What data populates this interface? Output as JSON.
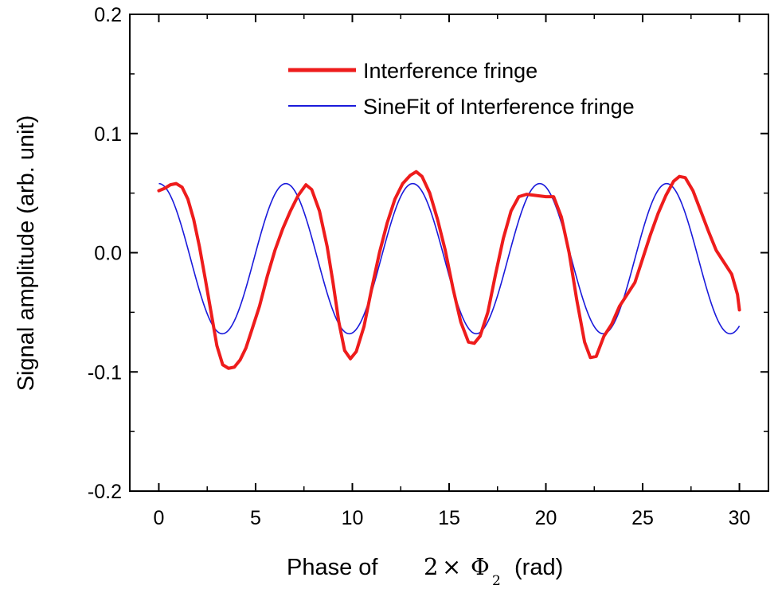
{
  "chart_data": {
    "type": "line",
    "xlabel": {
      "prefix": "Phase of",
      "math_coef": "2",
      "math_op": "×",
      "math_symbol": "Φ",
      "math_sub": "2",
      "suffix": "(rad)"
    },
    "ylabel": "Signal amplitude (arb. unit)",
    "xlim": [
      -1.5,
      31.5
    ],
    "ylim": [
      -0.2,
      0.2
    ],
    "x_ticks": [
      0,
      5,
      10,
      15,
      20,
      25,
      30
    ],
    "x_tick_labels": [
      "0",
      "5",
      "10",
      "15",
      "20",
      "25",
      "30"
    ],
    "y_ticks": [
      -0.2,
      -0.1,
      0.0,
      0.1,
      0.2
    ],
    "y_tick_labels": [
      "-0.2",
      "-0.1",
      "0.0",
      "0.1",
      "0.2"
    ],
    "grid": false,
    "legend_position": "top-right",
    "series": [
      {
        "name": "Interference fringe",
        "color": "#ee1c1c",
        "points": [
          [
            0.0,
            0.052
          ],
          [
            0.3,
            0.054
          ],
          [
            0.6,
            0.057
          ],
          [
            0.9,
            0.058
          ],
          [
            1.2,
            0.055
          ],
          [
            1.5,
            0.045
          ],
          [
            1.8,
            0.028
          ],
          [
            2.1,
            0.005
          ],
          [
            2.4,
            -0.022
          ],
          [
            2.7,
            -0.05
          ],
          [
            3.0,
            -0.078
          ],
          [
            3.3,
            -0.094
          ],
          [
            3.6,
            -0.097
          ],
          [
            3.9,
            -0.096
          ],
          [
            4.2,
            -0.09
          ],
          [
            4.5,
            -0.08
          ],
          [
            4.8,
            -0.065
          ],
          [
            5.2,
            -0.045
          ],
          [
            5.6,
            -0.02
          ],
          [
            6.0,
            0.002
          ],
          [
            6.4,
            0.02
          ],
          [
            6.8,
            0.035
          ],
          [
            7.2,
            0.048
          ],
          [
            7.6,
            0.057
          ],
          [
            7.9,
            0.053
          ],
          [
            8.3,
            0.035
          ],
          [
            8.7,
            0.005
          ],
          [
            9.0,
            -0.025
          ],
          [
            9.3,
            -0.058
          ],
          [
            9.6,
            -0.082
          ],
          [
            9.9,
            -0.089
          ],
          [
            10.2,
            -0.083
          ],
          [
            10.6,
            -0.062
          ],
          [
            11.0,
            -0.03
          ],
          [
            11.4,
            0.0
          ],
          [
            11.8,
            0.025
          ],
          [
            12.2,
            0.045
          ],
          [
            12.6,
            0.058
          ],
          [
            13.0,
            0.065
          ],
          [
            13.3,
            0.068
          ],
          [
            13.6,
            0.064
          ],
          [
            14.0,
            0.05
          ],
          [
            14.4,
            0.028
          ],
          [
            14.8,
            0.002
          ],
          [
            15.2,
            -0.03
          ],
          [
            15.6,
            -0.058
          ],
          [
            16.0,
            -0.075
          ],
          [
            16.3,
            -0.076
          ],
          [
            16.6,
            -0.07
          ],
          [
            17.0,
            -0.05
          ],
          [
            17.4,
            -0.018
          ],
          [
            17.8,
            0.012
          ],
          [
            18.2,
            0.035
          ],
          [
            18.6,
            0.047
          ],
          [
            19.0,
            0.049
          ],
          [
            19.5,
            0.048
          ],
          [
            20.0,
            0.047
          ],
          [
            20.4,
            0.047
          ],
          [
            20.8,
            0.03
          ],
          [
            21.2,
            0.0
          ],
          [
            21.6,
            -0.04
          ],
          [
            22.0,
            -0.075
          ],
          [
            22.3,
            -0.088
          ],
          [
            22.6,
            -0.087
          ],
          [
            23.0,
            -0.07
          ],
          [
            23.4,
            -0.06
          ],
          [
            23.8,
            -0.045
          ],
          [
            24.2,
            -0.035
          ],
          [
            24.6,
            -0.025
          ],
          [
            25.0,
            -0.005
          ],
          [
            25.4,
            0.015
          ],
          [
            25.8,
            0.033
          ],
          [
            26.2,
            0.048
          ],
          [
            26.6,
            0.06
          ],
          [
            26.9,
            0.064
          ],
          [
            27.2,
            0.063
          ],
          [
            27.6,
            0.052
          ],
          [
            28.0,
            0.035
          ],
          [
            28.4,
            0.018
          ],
          [
            28.8,
            0.002
          ],
          [
            29.2,
            -0.008
          ],
          [
            29.6,
            -0.018
          ],
          [
            29.9,
            -0.035
          ],
          [
            30.0,
            -0.048
          ]
        ]
      },
      {
        "name": "SineFit of Interference fringe",
        "color": "#1a1adb",
        "model": {
          "form": "y0 + A*sin(pi*(x - xc)/w)",
          "y0": -0.005,
          "A": 0.063,
          "w": 3.28,
          "xc": -1.64,
          "x_start": 0.0,
          "x_end": 30.0
        }
      }
    ]
  }
}
